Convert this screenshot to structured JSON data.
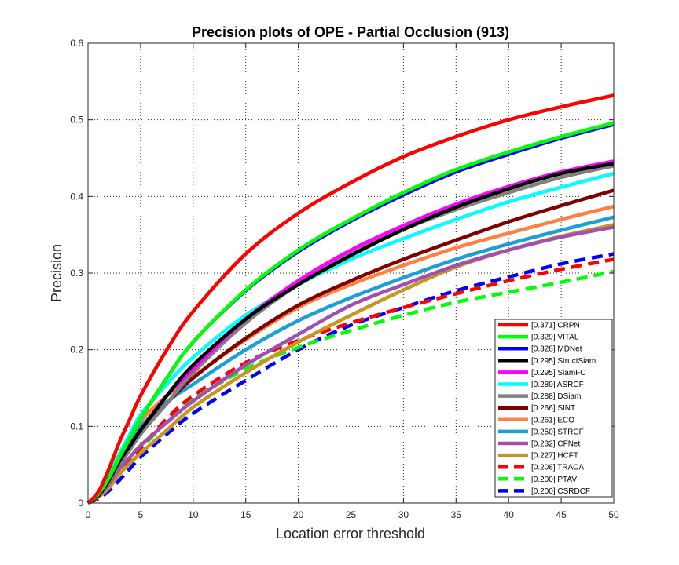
{
  "chart_data": {
    "type": "line",
    "title": "Precision plots of OPE - Partial Occlusion (913)",
    "xlabel": "Location error threshold",
    "ylabel": "Precision",
    "xlim": [
      0,
      50
    ],
    "ylim": [
      0,
      0.6
    ],
    "x_ticks": [
      "0",
      "5",
      "10",
      "15",
      "20",
      "25",
      "30",
      "35",
      "40",
      "45",
      "50"
    ],
    "y_ticks": [
      "0",
      "0.1",
      "0.2",
      "0.3",
      "0.4",
      "0.5",
      "0.6"
    ],
    "grid": true,
    "legend_position": "bottom-right",
    "x": [
      0,
      1,
      2,
      3,
      4,
      5,
      7.5,
      10,
      15,
      20,
      25,
      30,
      35,
      40,
      45,
      50
    ],
    "series": [
      {
        "name": "[0.371] CRPN",
        "color": "#ff0000",
        "style": "solid",
        "values": [
          0,
          0.015,
          0.045,
          0.08,
          0.11,
          0.14,
          0.2,
          0.25,
          0.325,
          0.378,
          0.418,
          0.452,
          0.478,
          0.5,
          0.517,
          0.532
        ]
      },
      {
        "name": "[0.329] VITAL",
        "color": "#00ff00",
        "style": "solid",
        "values": [
          0,
          0.012,
          0.033,
          0.06,
          0.085,
          0.11,
          0.163,
          0.21,
          0.278,
          0.33,
          0.37,
          0.405,
          0.435,
          0.458,
          0.478,
          0.496
        ]
      },
      {
        "name": "[0.328] MDNet",
        "color": "#0000ff",
        "style": "solid",
        "values": [
          0,
          0.012,
          0.033,
          0.06,
          0.085,
          0.11,
          0.163,
          0.21,
          0.277,
          0.328,
          0.368,
          0.402,
          0.432,
          0.455,
          0.476,
          0.494
        ]
      },
      {
        "name": "[0.295] StructSiam",
        "color": "#000000",
        "style": "solid",
        "values": [
          0,
          0.01,
          0.03,
          0.055,
          0.075,
          0.095,
          0.14,
          0.18,
          0.24,
          0.285,
          0.323,
          0.357,
          0.386,
          0.41,
          0.43,
          0.443
        ]
      },
      {
        "name": "[0.295] SiamFC",
        "color": "#ff00ff",
        "style": "solid",
        "values": [
          0,
          0.01,
          0.03,
          0.055,
          0.075,
          0.095,
          0.14,
          0.175,
          0.24,
          0.29,
          0.33,
          0.362,
          0.39,
          0.413,
          0.432,
          0.446
        ]
      },
      {
        "name": "[0.289] ASRCF",
        "color": "#00ffff",
        "style": "solid",
        "values": [
          0,
          0.012,
          0.035,
          0.065,
          0.09,
          0.115,
          0.155,
          0.19,
          0.245,
          0.285,
          0.318,
          0.345,
          0.37,
          0.393,
          0.412,
          0.43
        ]
      },
      {
        "name": "[0.288] DSiam",
        "color": "#808080",
        "style": "solid",
        "values": [
          0,
          0.01,
          0.028,
          0.05,
          0.07,
          0.09,
          0.13,
          0.17,
          0.235,
          0.285,
          0.325,
          0.357,
          0.383,
          0.405,
          0.425,
          0.44
        ]
      },
      {
        "name": "[0.266] SINT",
        "color": "#800000",
        "style": "solid",
        "values": [
          0,
          0.01,
          0.028,
          0.05,
          0.07,
          0.09,
          0.13,
          0.163,
          0.215,
          0.258,
          0.29,
          0.318,
          0.343,
          0.367,
          0.388,
          0.408
        ]
      },
      {
        "name": "[0.261] ECO",
        "color": "#ff8040",
        "style": "solid",
        "values": [
          0,
          0.012,
          0.033,
          0.06,
          0.085,
          0.107,
          0.14,
          0.165,
          0.213,
          0.255,
          0.285,
          0.31,
          0.333,
          0.352,
          0.37,
          0.387
        ]
      },
      {
        "name": "[0.250] STRCF",
        "color": "#1aa0d8",
        "style": "solid",
        "values": [
          0,
          0.012,
          0.033,
          0.058,
          0.08,
          0.1,
          0.132,
          0.155,
          0.2,
          0.238,
          0.268,
          0.294,
          0.318,
          0.338,
          0.356,
          0.373
        ]
      },
      {
        "name": "[0.232] CFNet",
        "color": "#a050b0",
        "style": "solid",
        "values": [
          0,
          0.01,
          0.025,
          0.045,
          0.06,
          0.075,
          0.105,
          0.133,
          0.18,
          0.22,
          0.258,
          0.285,
          0.31,
          0.33,
          0.347,
          0.36
        ]
      },
      {
        "name": "[0.227] HCFT",
        "color": "#c8961e",
        "style": "solid",
        "values": [
          0,
          0.008,
          0.02,
          0.038,
          0.052,
          0.065,
          0.095,
          0.125,
          0.17,
          0.21,
          0.245,
          0.278,
          0.308,
          0.33,
          0.348,
          0.363
        ]
      },
      {
        "name": "[0.208] TRACA",
        "color": "#ff0000",
        "style": "dashed",
        "values": [
          0,
          0.008,
          0.02,
          0.038,
          0.055,
          0.072,
          0.11,
          0.14,
          0.183,
          0.212,
          0.235,
          0.255,
          0.273,
          0.29,
          0.305,
          0.318
        ]
      },
      {
        "name": "[0.200] PTAV",
        "color": "#00ff00",
        "style": "dashed",
        "values": [
          0,
          0.008,
          0.02,
          0.038,
          0.055,
          0.07,
          0.107,
          0.135,
          0.175,
          0.203,
          0.225,
          0.245,
          0.262,
          0.275,
          0.288,
          0.302
        ]
      },
      {
        "name": "[0.200] CSRDCF",
        "color": "#0000ff",
        "style": "dashed",
        "values": [
          0,
          0.006,
          0.016,
          0.03,
          0.045,
          0.06,
          0.09,
          0.117,
          0.16,
          0.2,
          0.232,
          0.255,
          0.277,
          0.295,
          0.312,
          0.325
        ]
      }
    ]
  }
}
